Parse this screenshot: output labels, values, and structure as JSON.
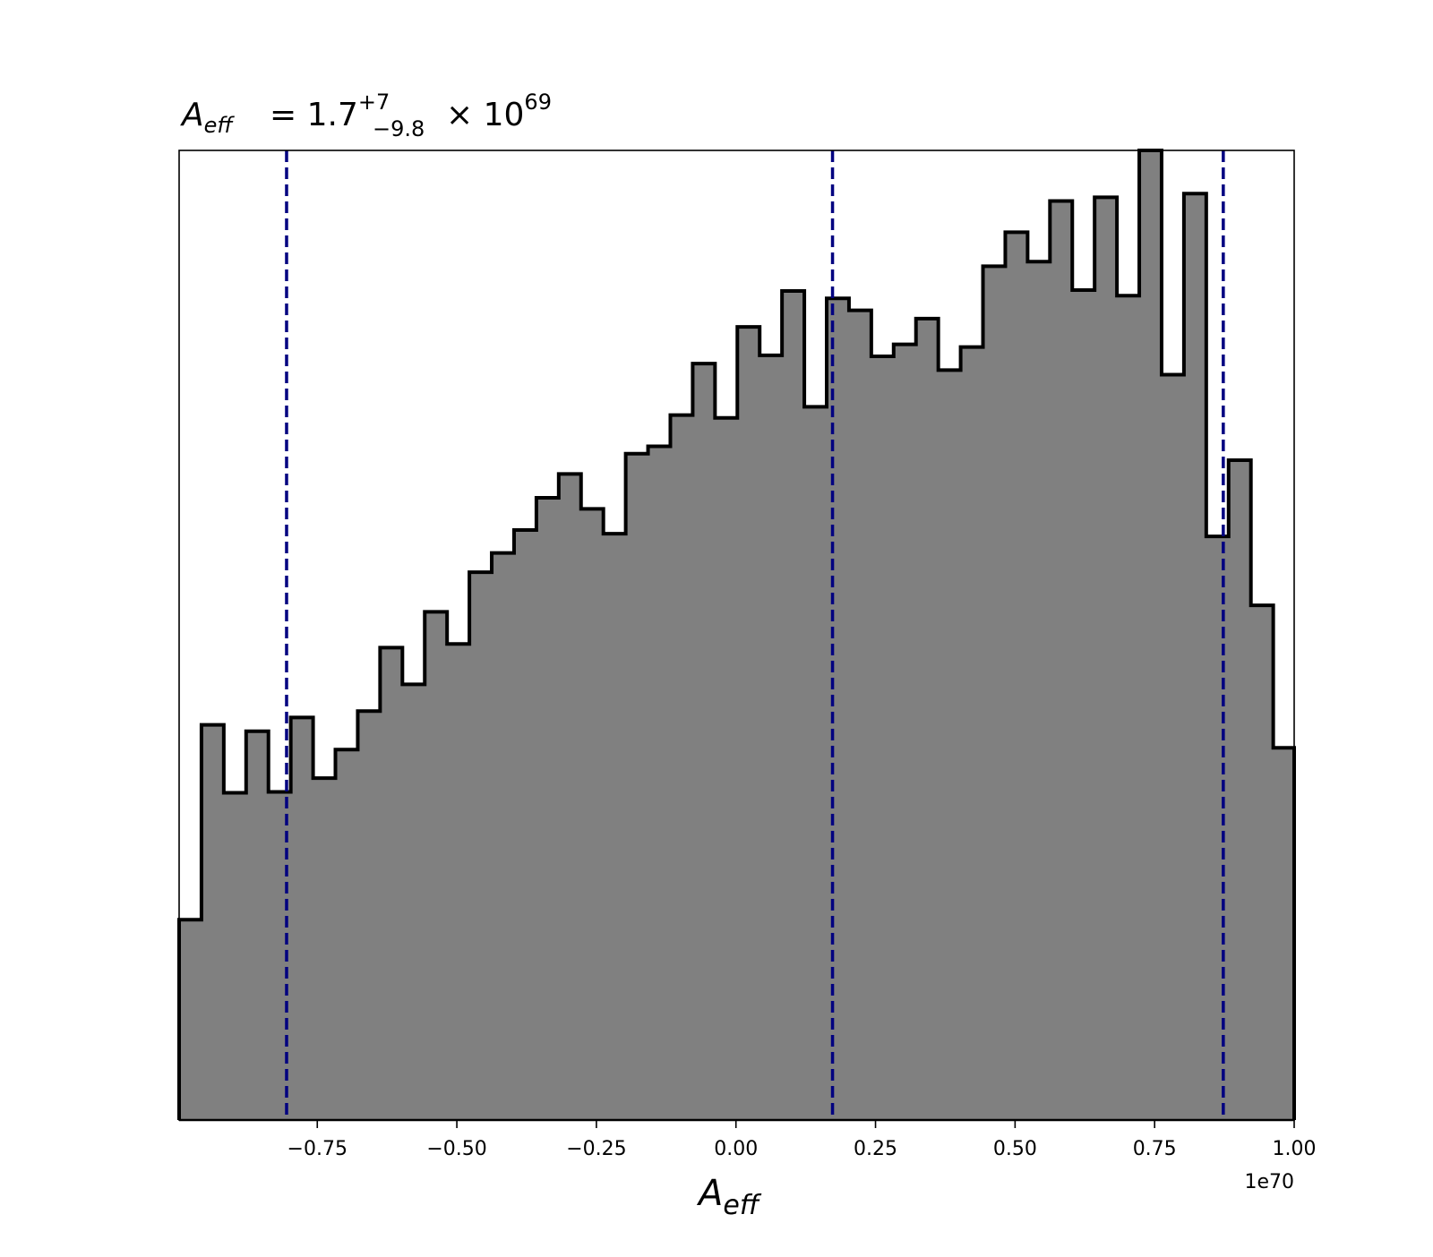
{
  "chart_data": {
    "type": "histogram",
    "title": {
      "symbol": "A",
      "symbol_sub": "eff",
      "relation": "= 1.7",
      "upper_err": "+7",
      "lower_err": "−9.8",
      "multiplier": "× 10",
      "exponent": "69"
    },
    "xlabel": {
      "symbol": "A",
      "symbol_sub": "eff"
    },
    "ylabel": "",
    "x_offset_label": "1e70",
    "x_scale": 1e+70,
    "xlim": [
      -0.9975,
      1.0
    ],
    "ylim": [
      0,
      1055
    ],
    "y_axis_visible": false,
    "grid": false,
    "x_ticks": [
      -0.75,
      -0.5,
      -0.25,
      0.0,
      0.25,
      0.5,
      0.75,
      1.0
    ],
    "x_tick_labels": [
      "−0.75",
      "−0.50",
      "−0.25",
      "0.00",
      "0.25",
      "0.50",
      "0.75",
      "1.00"
    ],
    "bin_edges": [
      -0.9975,
      -0.9575,
      -0.9175,
      -0.8775,
      -0.8375,
      -0.7975,
      -0.7575,
      -0.7175,
      -0.6775,
      -0.6375,
      -0.5975,
      -0.5575,
      -0.5175,
      -0.4775,
      -0.4375,
      -0.3975,
      -0.3575,
      -0.3175,
      -0.2775,
      -0.2375,
      -0.1975,
      -0.1575,
      -0.1175,
      -0.0775,
      -0.0375,
      0.0025,
      0.0425,
      0.0825,
      0.1225,
      0.1625,
      0.2025,
      0.2425,
      0.2825,
      0.3225,
      0.3625,
      0.4025,
      0.4425,
      0.4825,
      0.5225,
      0.5625,
      0.6025,
      0.6425,
      0.6825,
      0.7225,
      0.7625,
      0.8025,
      0.8425,
      0.8825,
      0.9225,
      0.9625,
      1.0
    ],
    "counts": [
      218,
      430,
      356,
      423,
      357,
      438,
      372,
      403,
      445,
      514,
      474,
      553,
      518,
      596,
      617,
      642,
      677,
      703,
      665,
      638,
      725,
      733,
      767,
      823,
      764,
      863,
      832,
      902,
      776,
      894,
      881,
      831,
      844,
      872,
      816,
      841,
      929,
      966,
      934,
      1000,
      903,
      1004,
      897,
      1055,
      811,
      1008,
      635,
      718,
      560,
      405
    ],
    "fill_color": "#808080",
    "edge_color": "#000000",
    "reference_lines": [
      {
        "x": -0.805,
        "style": "dashed",
        "color": "#000080"
      },
      {
        "x": 0.173,
        "style": "dashed",
        "color": "#000080"
      },
      {
        "x": 0.873,
        "style": "dashed",
        "color": "#000080"
      }
    ]
  }
}
